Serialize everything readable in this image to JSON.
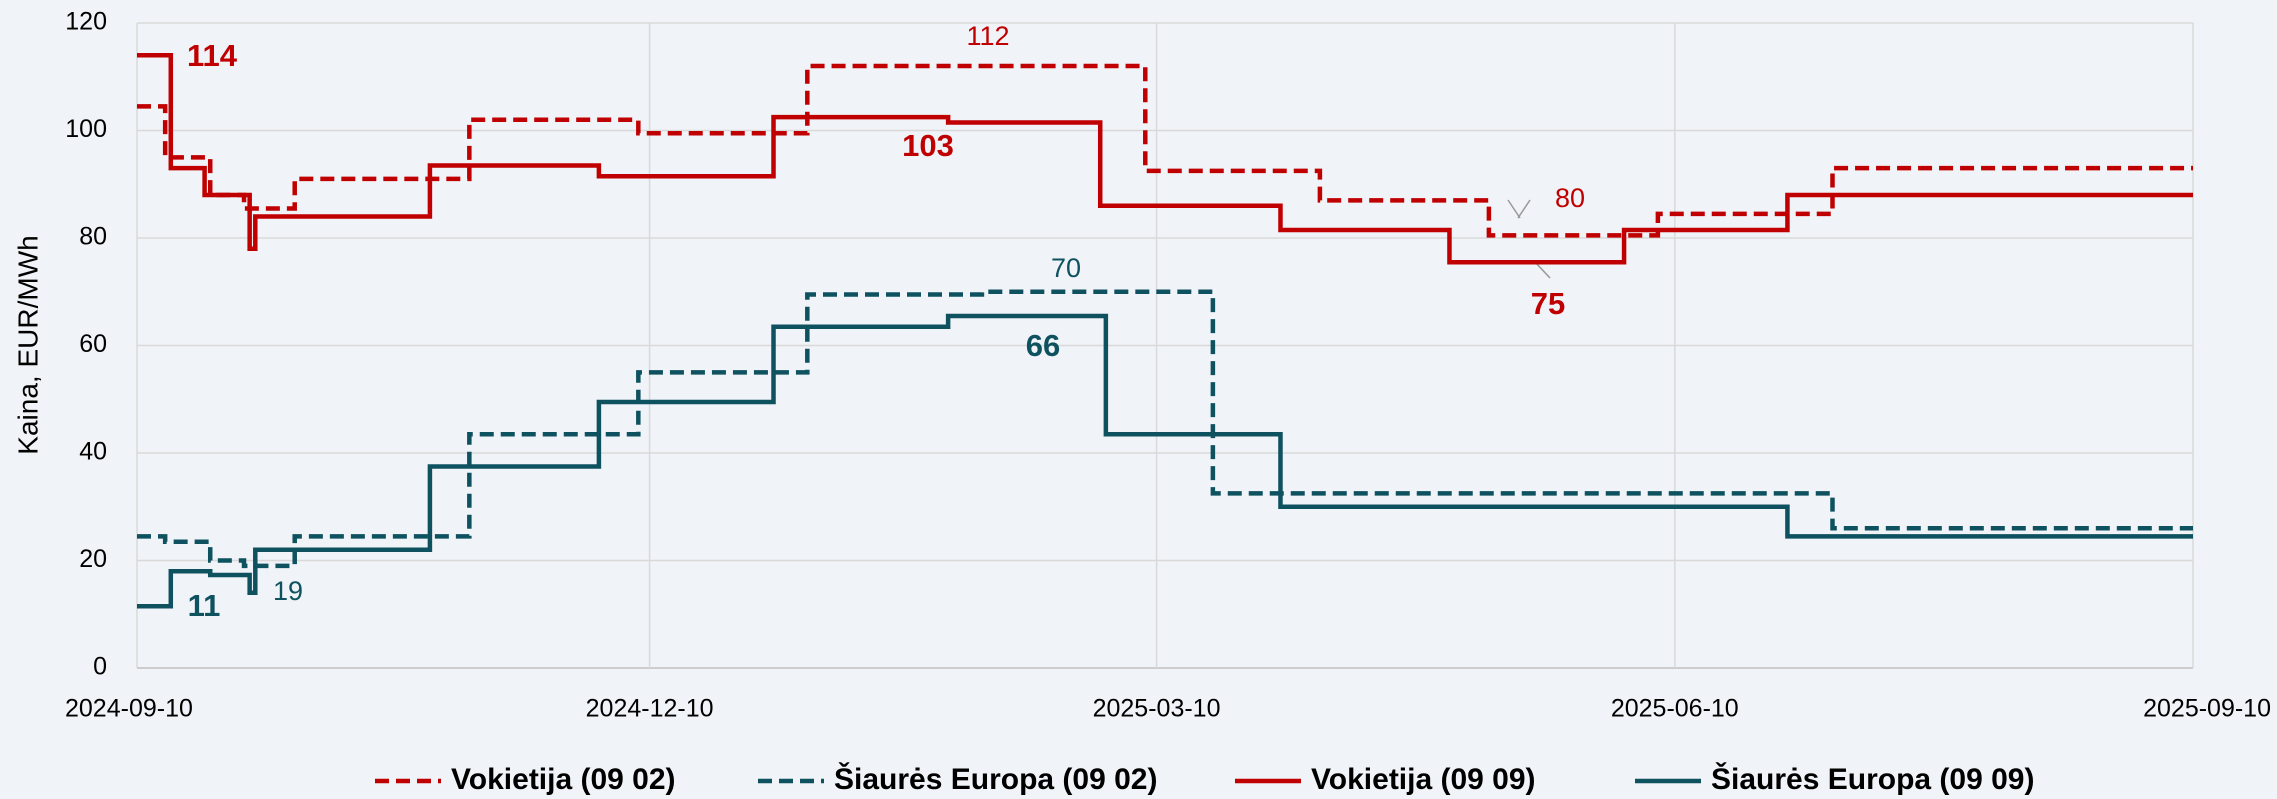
{
  "chart_data": {
    "type": "line",
    "step": true,
    "y_label": "Kaina, EUR/MWh",
    "xlim": [
      "2024-09-10",
      "2025-09-10"
    ],
    "xticks": [
      "2024-09-10",
      "2024-12-10",
      "2025-03-10",
      "2025-06-10",
      "2025-09-10"
    ],
    "ylim": [
      0,
      120
    ],
    "yticks": [
      0,
      20,
      40,
      60,
      80,
      100,
      120
    ],
    "grid": true,
    "legend": "bottom",
    "series": [
      {
        "name": "Vokietija (09 02)",
        "color": "#c00000",
        "dash": true,
        "x": [
          "2024-09-10",
          "2024-09-15",
          "2024-09-23",
          "2024-09-29",
          "2024-10-08",
          "2024-11-08",
          "2024-12-08",
          "2025-01-07",
          "2025-03-08",
          "2025-04-08",
          "2025-05-08",
          "2025-06-07",
          "2025-07-08",
          "2025-09-10"
        ],
        "values": [
          104.5,
          95,
          88,
          85.5,
          91,
          102,
          99.5,
          112,
          92.5,
          87,
          80.5,
          84.5,
          93,
          93
        ]
      },
      {
        "name": "Šiaurės Europa (09 02)",
        "color": "#0e5260",
        "dash": true,
        "x": [
          "2024-09-10",
          "2024-09-15",
          "2024-09-23",
          "2024-09-29",
          "2024-10-08",
          "2024-11-08",
          "2024-12-08",
          "2025-01-07",
          "2025-02-07",
          "2025-03-20",
          "2025-07-08",
          "2025-09-10"
        ],
        "values": [
          24.5,
          23.5,
          20,
          19,
          24.5,
          43.5,
          55,
          69.5,
          70,
          32.5,
          26,
          26
        ]
      },
      {
        "name": "Vokietija (09 09)",
        "color": "#c00000",
        "dash": false,
        "x": [
          "2024-09-10",
          "2024-09-16",
          "2024-09-22",
          "2024-09-30",
          "2024-10-01",
          "2024-11-01",
          "2024-12-01",
          "2025-01-01",
          "2025-02-01",
          "2025-02-28",
          "2025-04-01",
          "2025-05-01",
          "2025-06-01",
          "2025-06-30",
          "2025-09-10"
        ],
        "values": [
          114,
          93,
          88,
          78,
          84,
          93.5,
          91.5,
          102.5,
          101.5,
          86,
          81.5,
          75.5,
          81.5,
          88,
          88
        ]
      },
      {
        "name": "Šiaurės Europa (09 09)",
        "color": "#0e5260",
        "dash": false,
        "x": [
          "2024-09-10",
          "2024-09-16",
          "2024-09-23",
          "2024-09-30",
          "2024-10-01",
          "2024-11-01",
          "2024-12-01",
          "2025-01-01",
          "2025-02-01",
          "2025-03-01",
          "2025-04-01",
          "2025-06-30",
          "2025-09-10"
        ],
        "values": [
          11.5,
          18,
          17.3,
          14,
          22,
          37.5,
          49.5,
          63.5,
          65.5,
          43.5,
          30,
          24.5,
          24.5
        ]
      }
    ],
    "annotations": [
      "114",
      "112",
      "103",
      "80",
      "75",
      "70",
      "66",
      "19",
      "11"
    ]
  }
}
